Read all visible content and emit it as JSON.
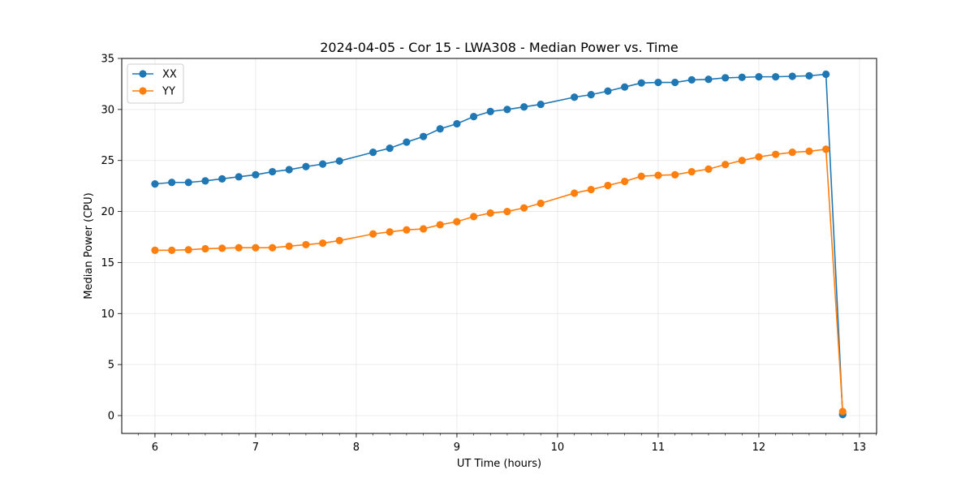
{
  "chart_data": {
    "type": "line",
    "title": "2024-04-05 - Cor 15 - LWA308 - Median Power vs. Time",
    "xlabel": "UT Time (hours)",
    "ylabel": "Median Power (CPU)",
    "xlim": [
      5.67,
      13.17
    ],
    "ylim": [
      -1.75,
      35
    ],
    "xticks": [
      6,
      7,
      8,
      9,
      10,
      11,
      12,
      13
    ],
    "yticks": [
      0,
      5,
      10,
      15,
      20,
      25,
      30,
      35
    ],
    "grid": true,
    "legend_position": "top-left",
    "x": [
      6.0,
      6.167,
      6.333,
      6.5,
      6.667,
      6.833,
      7.0,
      7.167,
      7.333,
      7.5,
      7.667,
      7.833,
      8.167,
      8.333,
      8.5,
      8.667,
      8.833,
      9.0,
      9.167,
      9.333,
      9.5,
      9.667,
      9.833,
      10.167,
      10.333,
      10.5,
      10.667,
      10.833,
      11.0,
      11.167,
      11.333,
      11.5,
      11.667,
      11.833,
      12.0,
      12.167,
      12.333,
      12.5,
      12.667,
      12.833
    ],
    "series": [
      {
        "name": "XX",
        "color": "#1f77b4",
        "values": [
          22.7,
          22.85,
          22.85,
          23.0,
          23.2,
          23.4,
          23.6,
          23.9,
          24.1,
          24.4,
          24.65,
          24.95,
          25.8,
          26.2,
          26.8,
          27.35,
          28.1,
          28.6,
          29.3,
          29.8,
          30.0,
          30.25,
          30.5,
          31.2,
          31.45,
          31.8,
          32.2,
          32.6,
          32.65,
          32.65,
          32.9,
          32.95,
          33.1,
          33.15,
          33.2,
          33.2,
          33.25,
          33.3,
          33.45,
          0.1
        ]
      },
      {
        "name": "YY",
        "color": "#ff7f0e",
        "values": [
          16.2,
          16.2,
          16.25,
          16.35,
          16.4,
          16.45,
          16.45,
          16.45,
          16.6,
          16.75,
          16.9,
          17.15,
          17.8,
          18.0,
          18.2,
          18.3,
          18.7,
          19.0,
          19.5,
          19.85,
          20.0,
          20.35,
          20.8,
          21.8,
          22.15,
          22.55,
          22.95,
          23.45,
          23.55,
          23.6,
          23.9,
          24.15,
          24.6,
          25.0,
          25.35,
          25.6,
          25.8,
          25.9,
          26.1,
          0.4
        ]
      }
    ]
  }
}
